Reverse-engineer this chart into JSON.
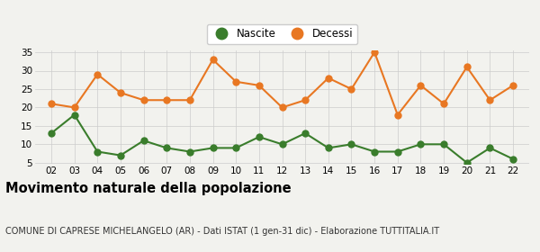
{
  "years": [
    2,
    3,
    4,
    5,
    6,
    7,
    8,
    9,
    10,
    11,
    12,
    13,
    14,
    15,
    16,
    17,
    18,
    19,
    20,
    21,
    22
  ],
  "nascite": [
    13,
    18,
    8,
    7,
    11,
    9,
    8,
    9,
    9,
    12,
    10,
    13,
    9,
    10,
    8,
    8,
    10,
    10,
    5,
    9,
    6
  ],
  "decessi": [
    21,
    20,
    29,
    24,
    22,
    22,
    22,
    33,
    27,
    26,
    20,
    22,
    28,
    25,
    35,
    18,
    26,
    21,
    31,
    22,
    26
  ],
  "nascite_color": "#3a7d2c",
  "decessi_color": "#e87722",
  "background_color": "#f2f2ee",
  "grid_color": "#cccccc",
  "ylim_min": 5,
  "ylim_max": 35,
  "yticks": [
    5,
    10,
    15,
    20,
    25,
    30,
    35
  ],
  "title": "Movimento naturale della popolazione",
  "subtitle": "COMUNE DI CAPRESE MICHELANGELO (AR) - Dati ISTAT (1 gen-31 dic) - Elaborazione TUTTITALIA.IT",
  "legend_nascite": "Nascite",
  "legend_decessi": "Decessi",
  "title_fontsize": 10.5,
  "subtitle_fontsize": 7.0,
  "marker_size": 5,
  "line_width": 1.5
}
